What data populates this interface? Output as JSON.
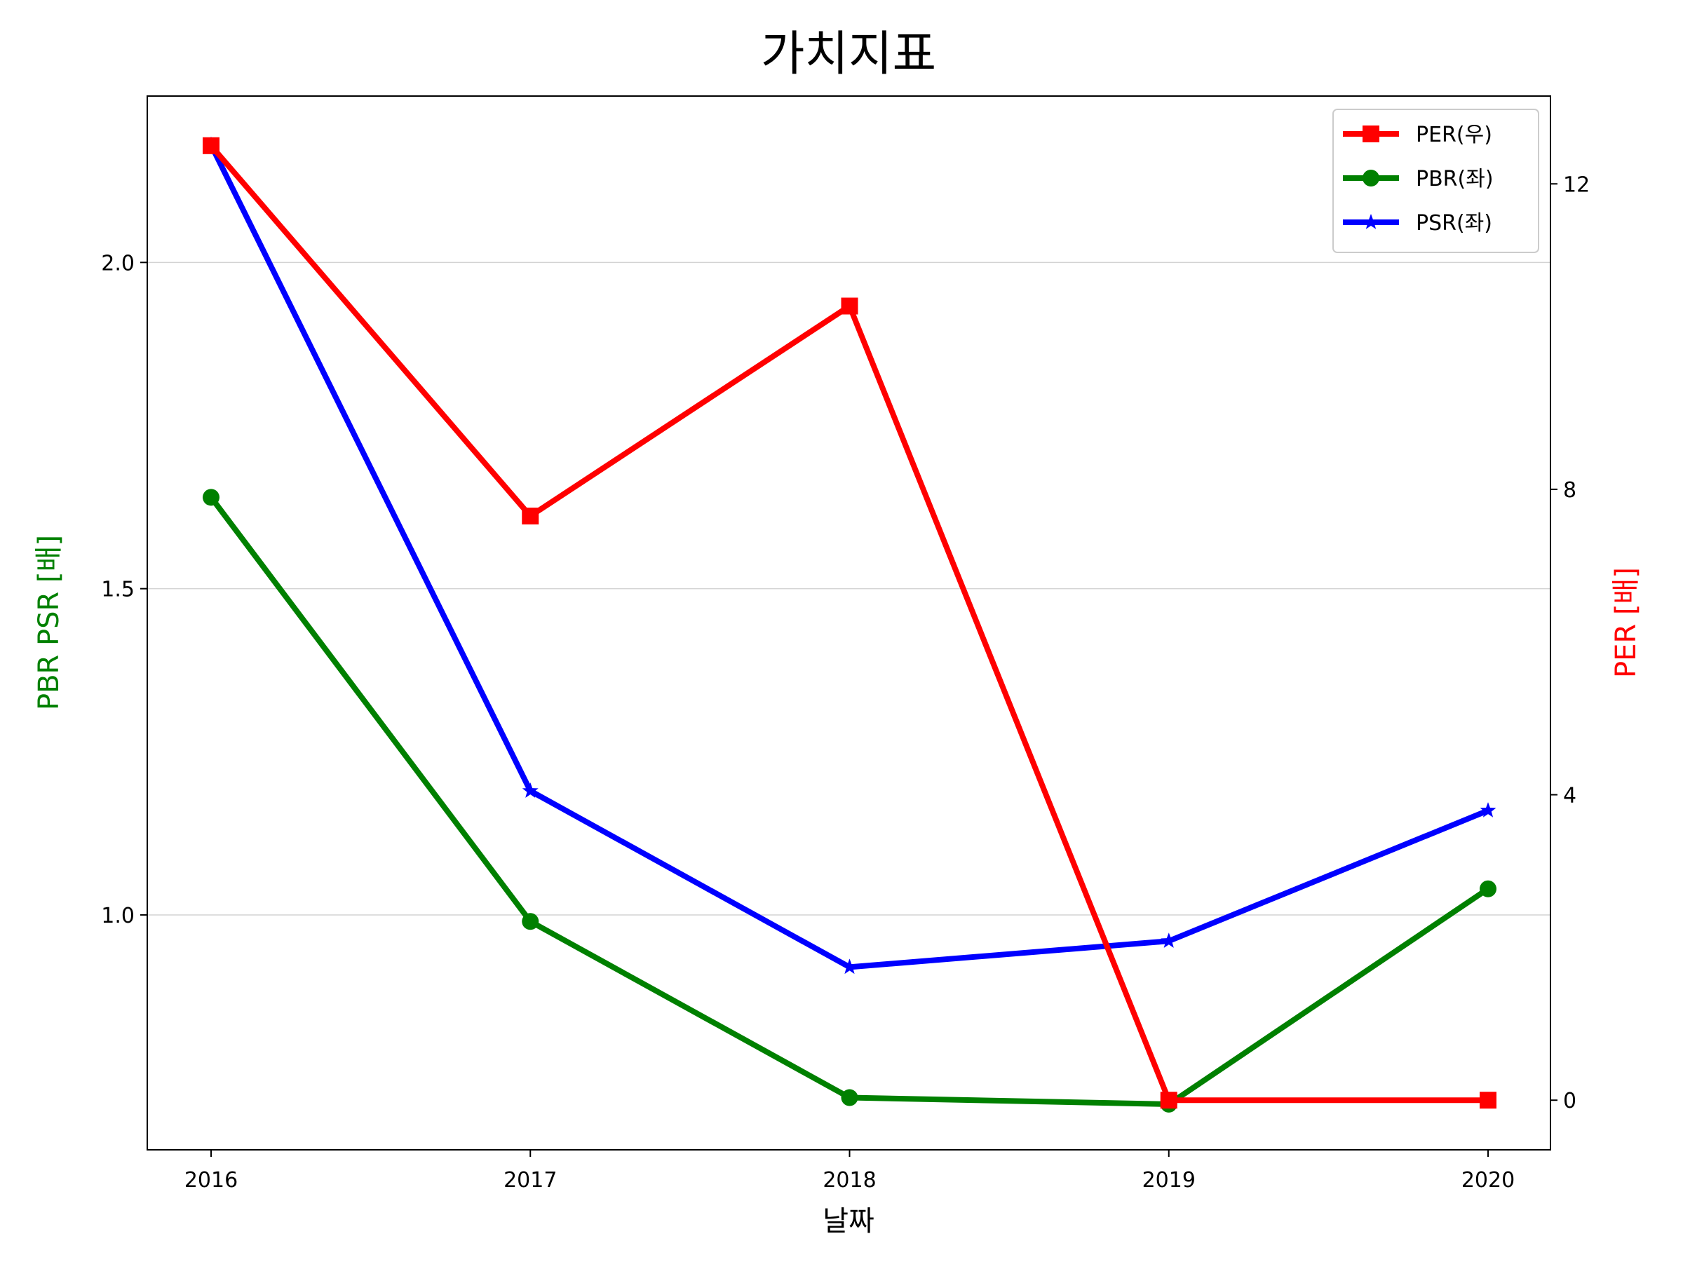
{
  "chart_data": {
    "type": "line",
    "title": "가치지표",
    "xlabel": "날짜",
    "ylabel_left": "PBR PSR [배]",
    "ylabel_right": "PER [배]",
    "categories": [
      "2016",
      "2017",
      "2018",
      "2019",
      "2020"
    ],
    "left_axis": {
      "ylim": [
        0.64,
        2.255
      ],
      "ticks": [
        1.0,
        1.5,
        2.0
      ],
      "tick_labels": [
        "1.0",
        "1.5",
        "2.0"
      ],
      "grid": true
    },
    "right_axis": {
      "ylim": [
        -0.65,
        13.15
      ],
      "ticks": [
        0,
        4,
        8,
        12
      ],
      "tick_labels": [
        "0",
        "4",
        "8",
        "12"
      ]
    },
    "series": [
      {
        "name": "PER(우)",
        "axis": "right",
        "color": "#ff0000",
        "marker": "square",
        "values": [
          12.5,
          7.65,
          10.4,
          0.0,
          0.0
        ]
      },
      {
        "name": "PBR(좌)",
        "axis": "left",
        "color": "#008000",
        "marker": "circle",
        "values": [
          1.64,
          0.99,
          0.72,
          0.71,
          1.04
        ]
      },
      {
        "name": "PSR(좌)",
        "axis": "left",
        "color": "#0000ff",
        "marker": "star",
        "values": [
          2.18,
          1.19,
          0.92,
          0.96,
          1.16
        ]
      }
    ],
    "legend_position": "top-right",
    "colors": {
      "ylabel_left": "#008000",
      "ylabel_right": "#ff0000"
    }
  }
}
